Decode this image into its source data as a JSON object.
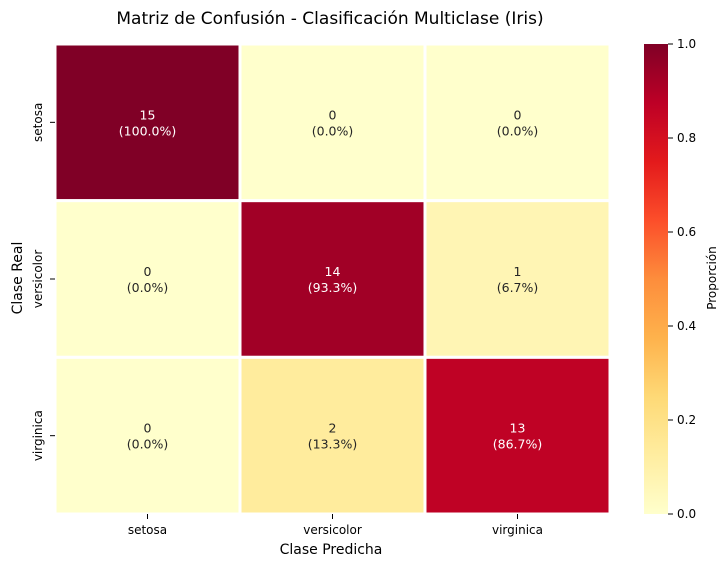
{
  "chart_data": {
    "type": "heatmap",
    "title": "Matriz de Confusión - Clasificación Multiclase (Iris)",
    "xlabel": "Clase Predicha",
    "ylabel": "Clase Real",
    "x_categories": [
      "setosa",
      "versicolor",
      "virginica"
    ],
    "y_categories": [
      "setosa",
      "versicolor",
      "virginica"
    ],
    "counts": [
      [
        15,
        0,
        0
      ],
      [
        0,
        14,
        1
      ],
      [
        0,
        2,
        13
      ]
    ],
    "proportions": [
      [
        1.0,
        0.0,
        0.0
      ],
      [
        0.0,
        0.933,
        0.067
      ],
      [
        0.0,
        0.133,
        0.867
      ]
    ],
    "cell_labels": [
      [
        [
          "15",
          "(100.0%)"
        ],
        [
          "0",
          "(0.0%)"
        ],
        [
          "0",
          "(0.0%)"
        ]
      ],
      [
        [
          "0",
          "(0.0%)"
        ],
        [
          "14",
          "(93.3%)"
        ],
        [
          "1",
          "(6.7%)"
        ]
      ],
      [
        [
          "0",
          "(0.0%)"
        ],
        [
          "2",
          "(13.3%)"
        ],
        [
          "13",
          "(86.7%)"
        ]
      ]
    ],
    "colorbar": {
      "label": "Proporción",
      "range": [
        0,
        1
      ],
      "ticks": [
        "0.0",
        "0.2",
        "0.4",
        "0.6",
        "0.8",
        "1.0"
      ],
      "colormap": "YlOrRd"
    },
    "colors": {
      "cell_border": "#ffffff",
      "text_dark": "#262626",
      "text_light": "#ffffff"
    }
  }
}
